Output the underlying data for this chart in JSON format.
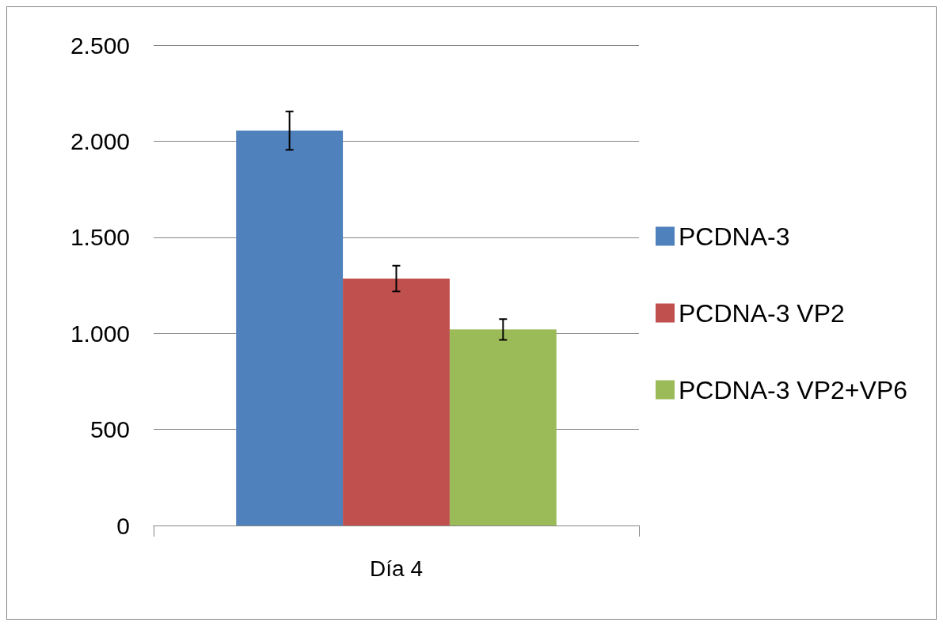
{
  "chart_data": {
    "type": "bar",
    "categories": [
      "Día 4"
    ],
    "series": [
      {
        "name": "PCDNA-3",
        "color": "#4f81bd",
        "values": [
          2055
        ],
        "errors": [
          100
        ]
      },
      {
        "name": "PCDNA-3 VP2",
        "color": "#c0504d",
        "values": [
          1285
        ],
        "errors": [
          67
        ]
      },
      {
        "name": "PCDNA-3 VP2+VP6",
        "color": "#9bbb59",
        "values": [
          1020
        ],
        "errors": [
          54
        ]
      }
    ],
    "ylim": [
      0,
      2500
    ],
    "yticks": [
      0,
      500,
      {
        "value": 1000,
        "label": "1.000"
      },
      {
        "value": 1500,
        "label": "1.500"
      },
      {
        "value": 2000,
        "label": "2.000"
      },
      {
        "value": 2500,
        "label": "2.500"
      }
    ],
    "grid": "y",
    "legend": "right"
  }
}
